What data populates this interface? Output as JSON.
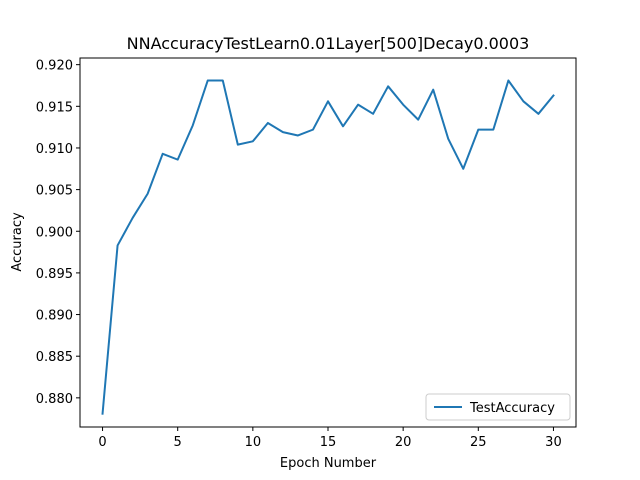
{
  "chart_data": {
    "type": "line",
    "title": "NNAccuracyTestLearn0.01Layer[500]Decay0.0003",
    "xlabel": "Epoch Number",
    "ylabel": "Accuracy",
    "xlim": [
      -1.5,
      31.5
    ],
    "ylim": [
      0.8765,
      0.9208
    ],
    "xticks": [
      0,
      5,
      10,
      15,
      20,
      25,
      30
    ],
    "xtick_labels": [
      "0",
      "5",
      "10",
      "15",
      "20",
      "25",
      "30"
    ],
    "yticks": [
      0.88,
      0.885,
      0.89,
      0.895,
      0.9,
      0.905,
      0.91,
      0.915,
      0.92
    ],
    "ytick_labels": [
      "0.880",
      "0.885",
      "0.890",
      "0.895",
      "0.900",
      "0.905",
      "0.910",
      "0.915",
      "0.920"
    ],
    "grid": false,
    "legend_position": "lower-right",
    "series": [
      {
        "name": "TestAccuracy",
        "color": "#1f77b4",
        "x": [
          0,
          1,
          2,
          3,
          4,
          5,
          6,
          7,
          8,
          9,
          10,
          11,
          12,
          13,
          14,
          15,
          16,
          17,
          18,
          19,
          20,
          21,
          22,
          23,
          24,
          25,
          26,
          27,
          28,
          29,
          30
        ],
        "values": [
          0.8781,
          0.8983,
          0.9016,
          0.9045,
          0.9093,
          0.9086,
          0.9127,
          0.9181,
          0.9181,
          0.9104,
          0.9108,
          0.913,
          0.9119,
          0.9115,
          0.9122,
          0.9156,
          0.9126,
          0.9152,
          0.9141,
          0.9174,
          0.9152,
          0.9134,
          0.917,
          0.9111,
          0.9075,
          0.9122,
          0.9122,
          0.9181,
          0.9156,
          0.9141,
          0.9163
        ]
      }
    ]
  }
}
